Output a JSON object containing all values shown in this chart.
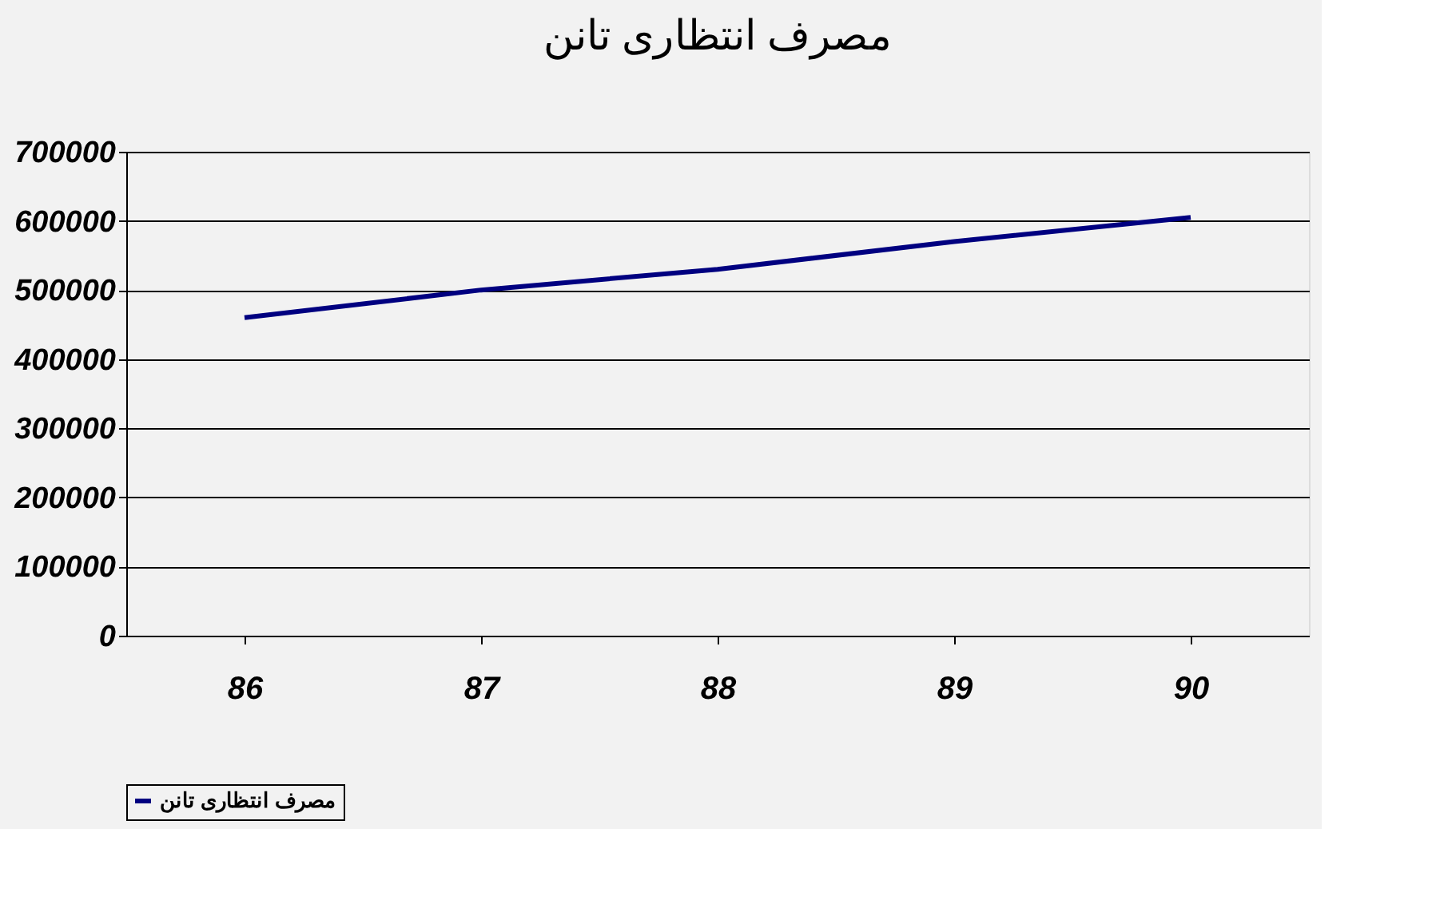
{
  "chart_data": {
    "type": "line",
    "title": "مصرف انتظاری تانن",
    "categories": [
      "86",
      "87",
      "88",
      "89",
      "90"
    ],
    "series": [
      {
        "name": "مصرف انتظاری تانن",
        "color": "#000080",
        "values": [
          460000,
          500000,
          530000,
          570000,
          605000
        ]
      }
    ],
    "ylim": [
      0,
      700000
    ],
    "yticks": [
      0,
      100000,
      200000,
      300000,
      400000,
      500000,
      600000,
      700000
    ],
    "grid": "y",
    "legend": "bottom",
    "marker": "none",
    "line_style": "solid"
  }
}
